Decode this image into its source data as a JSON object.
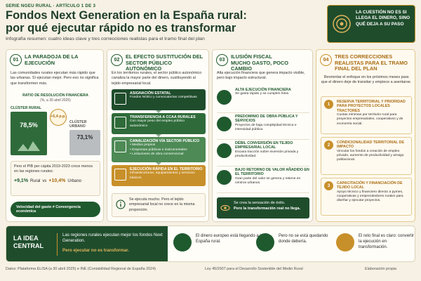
{
  "header": {
    "series": "SERIE NGEU RURAL · ARTÍCULO 1 DE 3",
    "title_lines": [
      "Fondos Next Generation en la España rural:",
      "por qué ejecutar rápido no es transformar"
    ],
    "subtitle": "Infografía resumen: cuatro ideas clave y tres correcciones realistas para el tramo final del plan",
    "callout": "LA CUESTIÓN NO ES SI LLEGA EL DINERO, SINO QUÉ DEJA A SU PASO"
  },
  "col1": {
    "number": "01",
    "heading": "LA PARADOJA DE LA EJECUCIÓN",
    "intro": "Las comunidades rurales ejecutan más rápido que las urbanas. Sí ejecutan mejor. Pero eso no significa que transformen más.",
    "ratio_label": "RATIO DE RESOLUCIÓN FINANCIERA",
    "ratio_sub": "(%, a 30 abril 2025)",
    "rural_label": "CLÚSTER RURAL",
    "rural_value": "78,5%",
    "delta": "+5,4 p.p.",
    "urban_label": "CLÚSTER URBANO",
    "urban_value": "73,1%",
    "pib_text": "Pero el PIB per cápita 2019-2023 crece menos en las regiones rurales:",
    "pib_rural_value": "+9,1%",
    "pib_rural_label": "Rural",
    "pib_vs": "vs",
    "pib_urban_value": "+10,4%",
    "pib_urban_label": "Urbano",
    "conclusion": "Velocidad del gasto ≠ Convergencia económica"
  },
  "col2": {
    "number": "02",
    "heading": "EL EFECTO SUSTITUCIÓN DEL SECTOR PÚBLICO AUTONÓMICO",
    "intro": "En los territorios rurales, el sector público autonómico canaliza la mayor parte del dinero, sustituyendo al tejido empresarial local.",
    "steps": [
      {
        "title": "ASIGNACIÓN ESTATAL",
        "text": "Fondos NGEU y convocatorias competitivas"
      },
      {
        "title": "TRANSFERENCIA A CCAA RURALES",
        "text": "Con mayor peso del empleo público autonómico"
      },
      {
        "title": "CANALIZACIÓN VÍA SECTOR PÚBLICO",
        "bullets": [
          "Medios propios",
          "Empresas públicas e instrumentales",
          "Licitaciones de obra convencional"
        ]
      },
      {
        "title": "EJECUCIÓN RÁPIDA EN EL TERRITORIO",
        "text": "Infraestructuras, equipamientos y servicios básicos"
      }
    ],
    "conclusion": "Se ejecuta mucho. Pero el tejido empresarial local no crece en la misma proporción."
  },
  "col3": {
    "number": "03",
    "heading": "ILUSIÓN FISCAL",
    "subheading": "MUCHO GASTO, POCO CAMBIO",
    "intro": "Alta ejecución financiera que genera impacto visible, pero bajo impacto estructural.",
    "items": [
      {
        "title": "ALTA EJECUCIÓN FINANCIERA",
        "text": "Se gasta rápido y se cumplen hitos."
      },
      {
        "title": "PREDOMINIO DE OBRA PÚBLICA Y SERVICIOS",
        "text": "Proyectos de baja complejidad técnica e intensidad pública."
      },
      {
        "title": "DÉBIL CONVERSIÓN EN TEJIDO EMPRESARIAL LOCAL",
        "text": "Escasa tracción sobre inversión privada y productividad."
      },
      {
        "title": "BAJO RETORNO DE VALOR AÑADIDO EN EL TERRITORIO",
        "text": "Gran parte del valor se genera y retiene en centros urbanos."
      }
    ],
    "conclusion": [
      "Se crea la sensación de éxito.",
      "Pero la transformación real no llega."
    ]
  },
  "col4": {
    "number": "04",
    "heading": "TRES CORRECCIONES REALISTAS PARA EL TRAMO FINAL DEL PLAN",
    "intro": "Reorientar el enfoque en los próximos meses para que el dinero deje de transitar y empiece a asentarse.",
    "items": [
      {
        "number": "1",
        "title": "RESERVA TERRITORIAL Y PRIORIDAD PARA PROYECTOS LOCALES TRACTORES",
        "text": "Cuotas mínimas por territorio rural para proyectos empresariales, cooperativos y de economía social."
      },
      {
        "number": "2",
        "title": "CONDICIONALIDAD TERRITORIAL DE IMPACTO",
        "text": "Vincular los fondos a creación de empleo privado, aumento de productividad y arraigo poblacional."
      },
      {
        "number": "3",
        "title": "CAPACITACIÓN Y FINANCIACIÓN DE TEJIDO LOCAL",
        "text": "Apoyo técnico y financiero directo a pymes, cooperativas y emprendedores rurales para diseñar y ejecutar proyectos."
      }
    ]
  },
  "central": {
    "label": "LA IDEA CENTRAL",
    "text": "Las regiones rurales ejecutan mejor los fondos Next Generation.",
    "highlight": "Pero ejecutar no es transformar.",
    "points": [
      "El dinero europeo está llegando a la España rural.",
      "Pero no se está quedando donde debería.",
      "El reto final es claro: convertir la ejecución en transformación."
    ]
  },
  "footer": {
    "sources": "Datos: Plataforma ELISA (a 30 abril 2025) e INE (Contabilidad Regional de España 2024)",
    "law": "Ley 45/2007 para el Desarrollo Sostenible del Medio Rural",
    "credit": "Elaboración propia"
  }
}
